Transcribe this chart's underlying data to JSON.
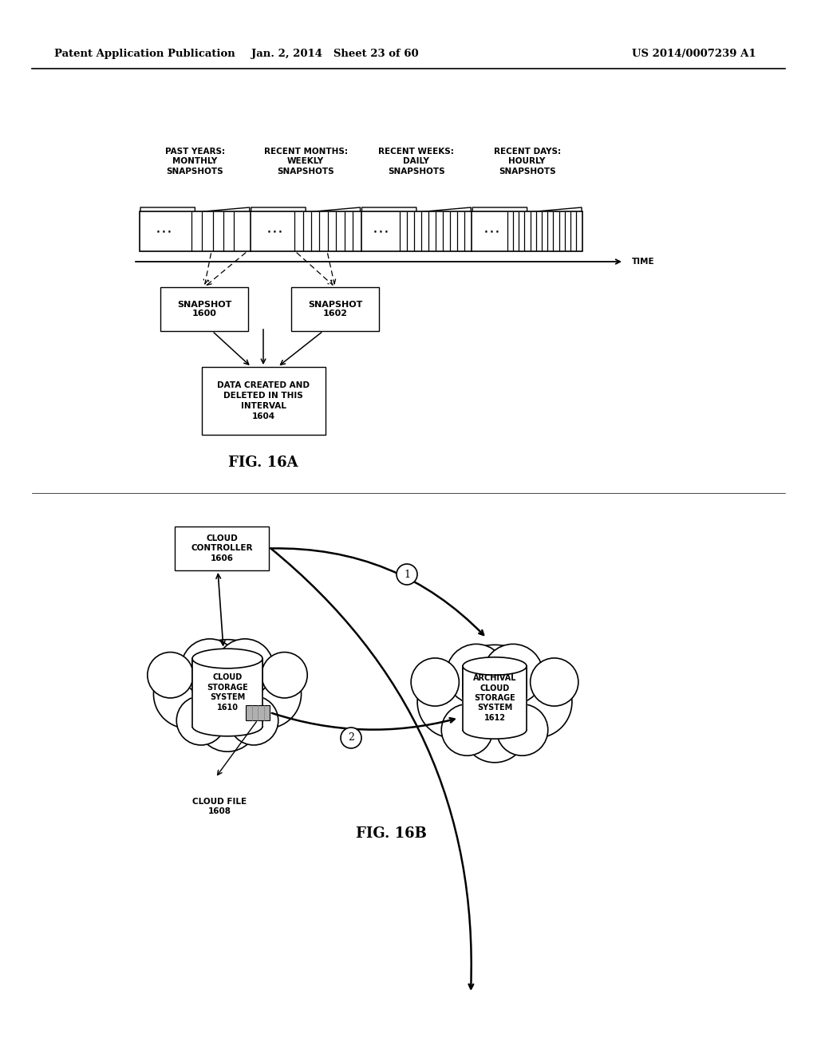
{
  "bg_color": "#ffffff",
  "header_left": "Patent Application Publication",
  "header_mid": "Jan. 2, 2014   Sheet 23 of 60",
  "header_right": "US 2014/0007239 A1",
  "fig16a_caption": "FIG. 16A",
  "fig16b_caption": "FIG. 16B",
  "labels": {
    "past_years": "PAST YEARS:\nMONTHLY\nSNAPSHOTS",
    "recent_months": "RECENT MONTHS:\nWEEKLY\nSNAPSHOTS",
    "recent_weeks": "RECENT WEEKS:\nDAILY\nSNAPSHOTS",
    "recent_days": "RECENT DAYS:\nHOURLY\nSNAPSHOTS",
    "snapshot1600": "SNAPSHOT\n1600",
    "snapshot1602": "SNAPSHOT\n1602",
    "data_created": "DATA CREATED AND\nDELETED IN THIS\nINTERVAL\n1604",
    "cloud_controller": "CLOUD\nCONTROLLER\n1606",
    "cloud_storage": "CLOUD\nSTORAGE\nSYSTEM\n1610",
    "archival_cloud": "ARCHIVAL\nCLOUD\nSTORAGE\nSYSTEM\n1612",
    "cloud_file": "CLOUD FILE\n1608"
  }
}
